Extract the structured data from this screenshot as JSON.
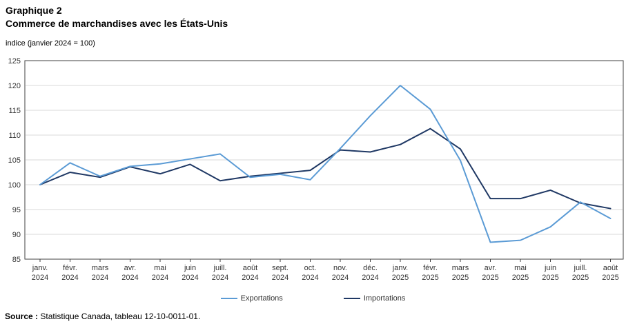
{
  "header": {
    "title_line1": "Graphique 2",
    "title_line2": "Commerce de marchandises avec les États-Unis",
    "subtitle": "indice (janvier 2024 = 100)"
  },
  "source": {
    "label": "Source :",
    "text": " Statistique Canada, tableau 12-10-0011-01."
  },
  "chart_data": {
    "type": "line",
    "title": "Commerce de marchandises avec les États-Unis",
    "ylabel": "indice (janvier 2024 = 100)",
    "xlabel": "",
    "ylim": [
      85,
      125
    ],
    "ytick_step": 5,
    "yticks": [
      85,
      90,
      95,
      100,
      105,
      110,
      115,
      120,
      125
    ],
    "grid": true,
    "legend_position": "bottom",
    "categories": [
      "janv. 2024",
      "févr. 2024",
      "mars 2024",
      "avr. 2024",
      "mai 2024",
      "juin 2024",
      "juill. 2024",
      "août 2024",
      "sept. 2024",
      "oct. 2024",
      "nov. 2024",
      "déc. 2024",
      "janv. 2025",
      "févr. 2025",
      "mars 2025",
      "avr. 2025",
      "mai 2025",
      "juin 2025",
      "juill. 2025",
      "août 2025"
    ],
    "series": [
      {
        "name": "Exportations",
        "color": "#5b9bd5",
        "values": [
          100,
          104.4,
          101.7,
          103.7,
          104.2,
          105.2,
          106.2,
          101.5,
          102.1,
          101.0,
          107.3,
          113.9,
          120.0,
          115.2,
          104.9,
          88.4,
          88.8,
          91.5,
          96.5,
          93.2
        ]
      },
      {
        "name": "Importations",
        "color": "#1f3864",
        "values": [
          100,
          102.5,
          101.5,
          103.6,
          102.2,
          104.1,
          100.8,
          101.7,
          102.3,
          102.9,
          107.0,
          106.6,
          108.1,
          111.3,
          107.2,
          97.2,
          97.2,
          98.9,
          96.3,
          95.2
        ]
      }
    ],
    "colors": {
      "grid": "#d9d9d9",
      "border": "#404040",
      "text": "#333333"
    }
  }
}
